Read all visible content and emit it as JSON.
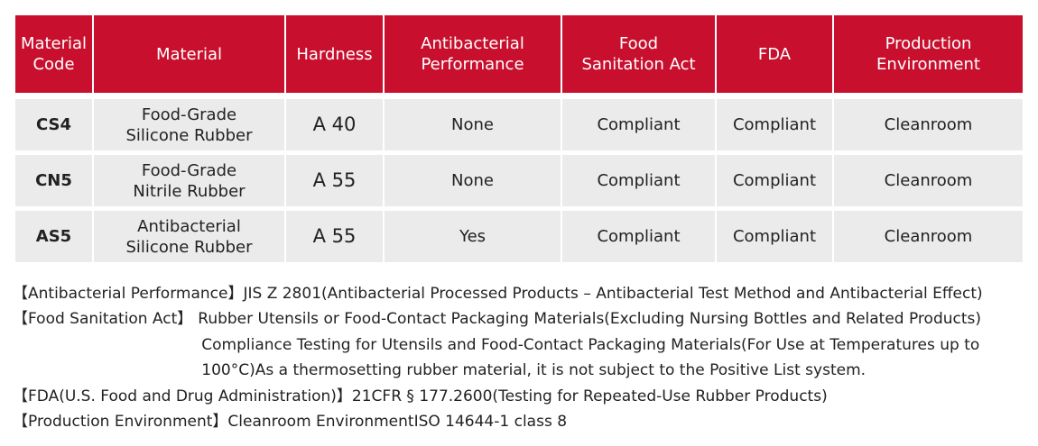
{
  "table": {
    "header": [
      "Material\nCode",
      "Material",
      "Hardness",
      "Antibacterial\nPerformance",
      "Food\nSanitation Act",
      "FDA",
      "Production\nEnvironment"
    ],
    "rows": [
      [
        "CS4",
        "Food-Grade\nSilicone Rubber",
        "A 40",
        "None",
        "Compliant",
        "Compliant",
        "Cleanroom"
      ],
      [
        "CN5",
        "Food-Grade\nNitrile Rubber",
        "A 55",
        "None",
        "Compliant",
        "Compliant",
        "Cleanroom"
      ],
      [
        "AS5",
        "Antibacterial\nSilicone Rubber",
        "A 55",
        "Yes",
        "Compliant",
        "Compliant",
        "Cleanroom"
      ]
    ]
  },
  "notes": [
    {
      "label": "【Antibacterial Performance】",
      "lines": [
        "JIS Z 2801(Antibacterial Processed Products – Antibacterial Test Method and Antibacterial Effect)"
      ]
    },
    {
      "label": "【Food Sanitation Act】",
      "lines": [
        "Rubber Utensils or Food-Contact Packaging Materials(Excluding Nursing Bottles and Related Products)",
        "Compliance Testing for Utensils and Food-Contact Packaging Materials(For Use at Temperatures up to",
        "100°C)As a thermosetting rubber material, it is not subject to the Positive List system."
      ]
    },
    {
      "label": "【FDA(U.S. Food and Drug Administration)】",
      "lines": [
        "21CFR § 177.2600(Testing for Repeated-Use Rubber Products)"
      ]
    },
    {
      "label": "【Production Environment】",
      "lines": [
        "Cleanroom EnvironmentISO 14644-1 class 8"
      ]
    }
  ]
}
